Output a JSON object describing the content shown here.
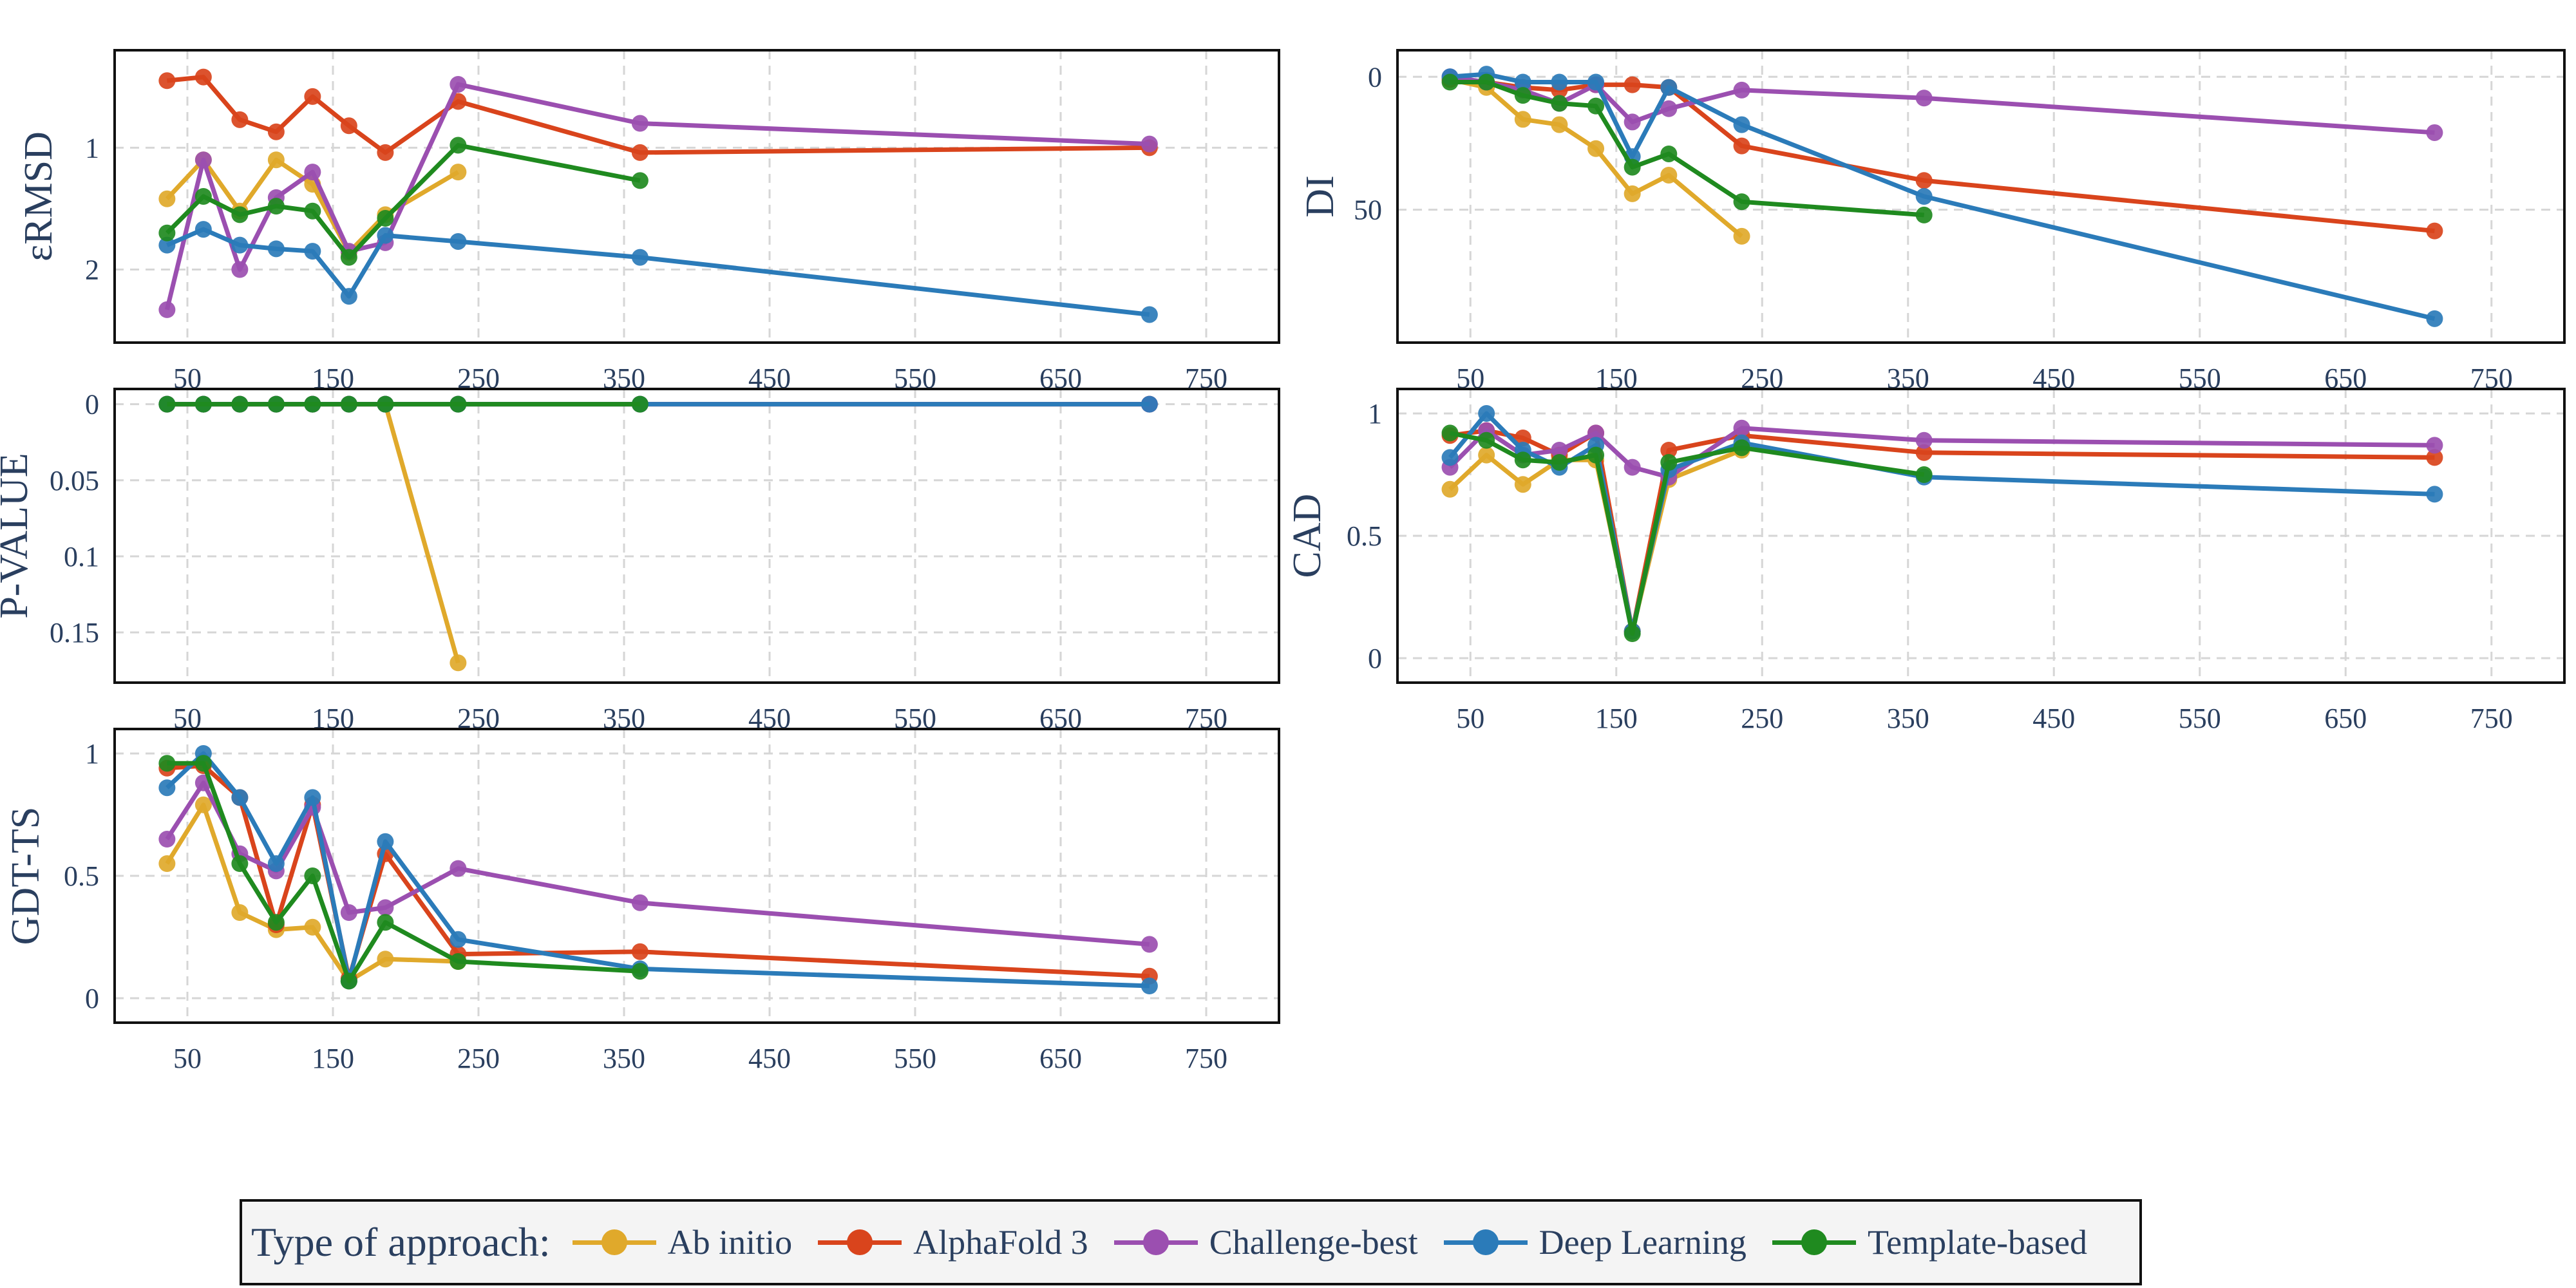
{
  "legend": {
    "title": "Type of approach:",
    "placement": "bottom-center"
  },
  "colors": {
    "Ab initio": "#e0a92b",
    "AlphaFold 3": "#d9441c",
    "Challenge-best": "#9b4fb0",
    "Deep Learning": "#2b7bb9",
    "Template-based": "#1f8a1f"
  },
  "chart_data": [
    {
      "type": "line",
      "ylabel": "εRMSD",
      "x_range": [
        0,
        800
      ],
      "y_range": [
        2.6,
        0.2
      ],
      "y_reversed": true,
      "x_ticks": [
        50,
        150,
        250,
        350,
        450,
        550,
        650,
        750
      ],
      "y_ticks": [
        1,
        2
      ],
      "grid": true,
      "series": [
        {
          "name": "Ab initio",
          "x": [
            36,
            61,
            86,
            111,
            136,
            161,
            186,
            236
          ],
          "y": [
            1.42,
            1.1,
            1.52,
            1.1,
            1.3,
            1.86,
            1.55,
            1.2
          ]
        },
        {
          "name": "AlphaFold 3",
          "x": [
            36,
            61,
            86,
            111,
            136,
            161,
            186,
            236,
            361,
            711
          ],
          "y": [
            0.45,
            0.42,
            0.77,
            0.87,
            0.58,
            0.82,
            1.04,
            0.62,
            1.04,
            1.0
          ]
        },
        {
          "name": "Challenge-best",
          "x": [
            36,
            61,
            86,
            111,
            136,
            161,
            186,
            236,
            361,
            711
          ],
          "y": [
            2.33,
            1.1,
            2.0,
            1.41,
            1.2,
            1.85,
            1.78,
            0.48,
            0.8,
            0.97
          ]
        },
        {
          "name": "Deep Learning",
          "x": [
            36,
            61,
            86,
            111,
            136,
            161,
            186,
            236,
            361,
            711
          ],
          "y": [
            1.8,
            1.67,
            1.8,
            1.83,
            1.85,
            2.22,
            1.72,
            1.77,
            1.9,
            2.37
          ]
        },
        {
          "name": "Template-based",
          "x": [
            36,
            61,
            86,
            111,
            136,
            161,
            186,
            236,
            361
          ],
          "y": [
            1.7,
            1.4,
            1.55,
            1.48,
            1.52,
            1.9,
            1.58,
            0.98,
            1.27
          ]
        }
      ]
    },
    {
      "type": "line",
      "ylabel": "DI",
      "x_range": [
        0,
        800
      ],
      "y_range": [
        100,
        -10
      ],
      "y_reversed": true,
      "x_ticks": [
        50,
        150,
        250,
        350,
        450,
        550,
        650,
        750
      ],
      "y_ticks": [
        0,
        50
      ],
      "grid": true,
      "series": [
        {
          "name": "Ab initio",
          "x": [
            36,
            61,
            86,
            111,
            136,
            161,
            186,
            236
          ],
          "y": [
            1,
            4,
            16,
            18,
            27,
            44,
            37,
            60
          ]
        },
        {
          "name": "AlphaFold 3",
          "x": [
            36,
            61,
            86,
            111,
            136,
            161,
            186,
            236,
            361,
            711
          ],
          "y": [
            1,
            2,
            4,
            5,
            3,
            3,
            4,
            26,
            39,
            58
          ]
        },
        {
          "name": "Challenge-best",
          "x": [
            36,
            61,
            86,
            111,
            136,
            161,
            186,
            236,
            361,
            711
          ],
          "y": [
            0,
            2,
            5,
            10,
            3,
            17,
            12,
            5,
            8,
            21
          ]
        },
        {
          "name": "Deep Learning",
          "x": [
            36,
            61,
            86,
            111,
            136,
            161,
            186,
            236,
            361,
            711
          ],
          "y": [
            0,
            -1,
            2,
            2,
            2,
            30,
            4,
            18,
            45,
            91
          ]
        },
        {
          "name": "Template-based",
          "x": [
            36,
            61,
            86,
            111,
            136,
            161,
            186,
            236,
            361
          ],
          "y": [
            2,
            2,
            7,
            10,
            11,
            34,
            29,
            47,
            52
          ]
        }
      ]
    },
    {
      "type": "line",
      "ylabel": "P-VALUE",
      "x_range": [
        0,
        800
      ],
      "y_range": [
        0.183,
        -0.01
      ],
      "y_reversed": true,
      "x_ticks": [
        50,
        150,
        250,
        350,
        450,
        550,
        650,
        750
      ],
      "y_ticks": [
        0,
        0.05,
        0.1,
        0.15
      ],
      "grid": true,
      "series": [
        {
          "name": "Ab initio",
          "x": [
            36,
            61,
            86,
            111,
            136,
            161,
            186,
            236
          ],
          "y": [
            0,
            0,
            0,
            0,
            0,
            0,
            0,
            0.17
          ]
        },
        {
          "name": "AlphaFold 3",
          "x": [
            36,
            61,
            86,
            111,
            136,
            161,
            186,
            236,
            361,
            711
          ],
          "y": [
            0,
            0,
            0,
            0,
            0,
            0,
            0,
            0,
            0,
            0
          ]
        },
        {
          "name": "Challenge-best",
          "x": [
            36,
            61,
            86,
            111,
            136,
            161,
            186,
            236,
            361,
            711
          ],
          "y": [
            0,
            0,
            0,
            0,
            0,
            0,
            0,
            0,
            0,
            0
          ]
        },
        {
          "name": "Deep Learning",
          "x": [
            36,
            61,
            86,
            111,
            136,
            161,
            186,
            236,
            361,
            711
          ],
          "y": [
            0,
            0,
            0,
            0,
            0,
            0,
            0,
            0,
            0,
            0
          ]
        },
        {
          "name": "Template-based",
          "x": [
            36,
            61,
            86,
            111,
            136,
            161,
            186,
            236,
            361
          ],
          "y": [
            0,
            0,
            0,
            0,
            0,
            0,
            0,
            0,
            0
          ]
        }
      ]
    },
    {
      "type": "line",
      "ylabel": "CAD",
      "x_range": [
        0,
        800
      ],
      "y_range": [
        -0.1,
        1.1
      ],
      "y_reversed": false,
      "x_ticks": [
        50,
        150,
        250,
        350,
        450,
        550,
        650,
        750
      ],
      "y_ticks": [
        0,
        0.5,
        1
      ],
      "grid": true,
      "series": [
        {
          "name": "Ab initio",
          "x": [
            36,
            61,
            86,
            111,
            136,
            161,
            186,
            236
          ],
          "y": [
            0.69,
            0.83,
            0.71,
            0.81,
            0.81,
            0.11,
            0.73,
            0.85
          ]
        },
        {
          "name": "AlphaFold 3",
          "x": [
            36,
            61,
            86,
            111,
            136,
            161,
            186,
            236,
            361,
            711
          ],
          "y": [
            0.91,
            0.93,
            0.9,
            0.83,
            0.92,
            0.11,
            0.85,
            0.91,
            0.84,
            0.82
          ]
        },
        {
          "name": "Challenge-best",
          "x": [
            36,
            61,
            86,
            111,
            136,
            161,
            186,
            236,
            361,
            711
          ],
          "y": [
            0.78,
            0.93,
            0.83,
            0.85,
            0.92,
            0.78,
            0.74,
            0.94,
            0.89,
            0.87
          ]
        },
        {
          "name": "Deep Learning",
          "x": [
            36,
            61,
            86,
            111,
            136,
            161,
            186,
            236,
            361,
            711
          ],
          "y": [
            0.82,
            1.0,
            0.85,
            0.78,
            0.87,
            0.11,
            0.77,
            0.88,
            0.74,
            0.67
          ]
        },
        {
          "name": "Template-based",
          "x": [
            36,
            61,
            86,
            111,
            136,
            161,
            186,
            236,
            361
          ],
          "y": [
            0.92,
            0.89,
            0.81,
            0.8,
            0.83,
            0.1,
            0.8,
            0.86,
            0.75
          ]
        }
      ]
    },
    {
      "type": "line",
      "ylabel": "GDT-TS",
      "x_range": [
        0,
        800
      ],
      "y_range": [
        -0.1,
        1.1
      ],
      "y_reversed": false,
      "x_ticks": [
        50,
        150,
        250,
        350,
        450,
        550,
        650,
        750
      ],
      "y_ticks": [
        0,
        0.5,
        1
      ],
      "grid": true,
      "series": [
        {
          "name": "Ab initio",
          "x": [
            36,
            61,
            86,
            111,
            136,
            161,
            186,
            236
          ],
          "y": [
            0.55,
            0.79,
            0.35,
            0.28,
            0.29,
            0.07,
            0.16,
            0.15
          ]
        },
        {
          "name": "AlphaFold 3",
          "x": [
            36,
            61,
            86,
            111,
            136,
            161,
            186,
            236,
            361,
            711
          ],
          "y": [
            0.94,
            0.95,
            0.82,
            0.3,
            0.79,
            0.08,
            0.59,
            0.18,
            0.19,
            0.09
          ]
        },
        {
          "name": "Challenge-best",
          "x": [
            36,
            61,
            86,
            111,
            136,
            161,
            186,
            236,
            361,
            711
          ],
          "y": [
            0.65,
            0.88,
            0.59,
            0.52,
            0.78,
            0.35,
            0.37,
            0.53,
            0.39,
            0.22
          ]
        },
        {
          "name": "Deep Learning",
          "x": [
            36,
            61,
            86,
            111,
            136,
            161,
            186,
            236,
            361,
            711
          ],
          "y": [
            0.86,
            1.0,
            0.82,
            0.55,
            0.82,
            0.07,
            0.64,
            0.24,
            0.12,
            0.05
          ]
        },
        {
          "name": "Template-based",
          "x": [
            36,
            61,
            86,
            111,
            136,
            161,
            186,
            236,
            361
          ],
          "y": [
            0.96,
            0.96,
            0.55,
            0.31,
            0.5,
            0.07,
            0.31,
            0.15,
            0.11
          ]
        }
      ]
    }
  ]
}
